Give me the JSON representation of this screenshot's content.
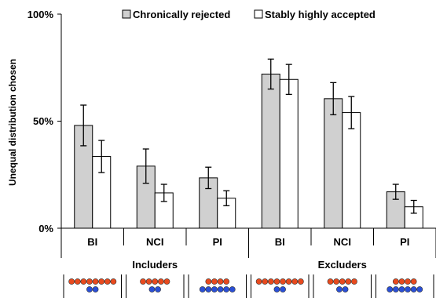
{
  "chart_data": {
    "type": "bar",
    "ylabel": "Unequal distribution chosen",
    "yticks": [
      "0%",
      "50%",
      "100%"
    ],
    "ylim": [
      0,
      100
    ],
    "groups": [
      {
        "name": "Includers",
        "categories": [
          "BI",
          "NCI",
          "PI"
        ]
      },
      {
        "name": "Excluders",
        "categories": [
          "BI",
          "NCI",
          "PI"
        ]
      }
    ],
    "categories": [
      "BI",
      "NCI",
      "PI",
      "BI",
      "NCI",
      "PI"
    ],
    "series": [
      {
        "name": "Chronically rejected",
        "color": "#d0d0d0",
        "values": [
          48,
          29,
          23.5,
          72,
          60.5,
          17
        ],
        "error": [
          9.5,
          8,
          5,
          7,
          7.5,
          3.5
        ]
      },
      {
        "name": "Stably highly accepted",
        "color": "#ffffff",
        "values": [
          33.5,
          16.5,
          14,
          69.5,
          54,
          10
        ],
        "error": [
          7.5,
          4,
          3.5,
          7,
          7.5,
          3
        ]
      }
    ],
    "legend_position": "top",
    "grid": false,
    "dot_icons": [
      {
        "red": 8,
        "blue": 2
      },
      {
        "red": 5,
        "blue": 2
      },
      {
        "red": 4,
        "blue": 6
      },
      {
        "red": 8,
        "blue": 2
      },
      {
        "red": 5,
        "blue": 2
      },
      {
        "red": 4,
        "blue": 6
      }
    ],
    "colors": {
      "red": "#e84a1e",
      "blue": "#2a4fd6"
    }
  }
}
